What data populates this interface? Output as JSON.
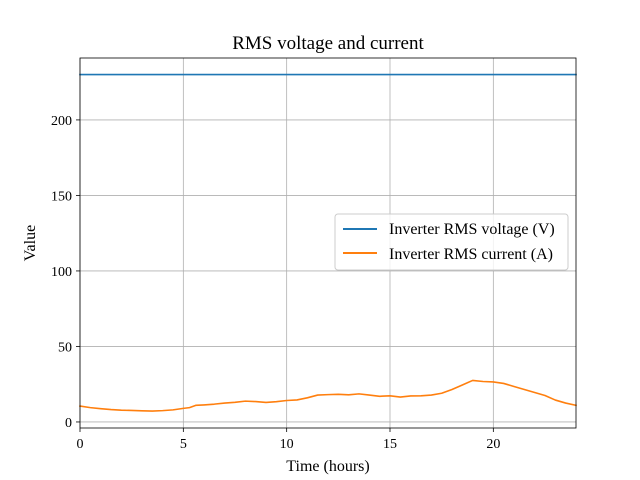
{
  "chart_data": {
    "type": "line",
    "title": "RMS voltage and current",
    "xlabel": "Time (hours)",
    "ylabel": "Value",
    "xlim": [
      0,
      24
    ],
    "ylim": [
      -4,
      241
    ],
    "xticks": [
      0,
      5,
      10,
      15,
      20
    ],
    "yticks": [
      0,
      50,
      100,
      150,
      200
    ],
    "grid": true,
    "legend_position": "center-right",
    "series": [
      {
        "name": "Inverter RMS voltage (V)",
        "color": "#1f77b4",
        "x": [
          0,
          24
        ],
        "y": [
          230,
          230
        ]
      },
      {
        "name": "Inverter RMS current (A)",
        "color": "#ff7f0e",
        "x": [
          0,
          0.5,
          1,
          1.5,
          2,
          2.5,
          3,
          3.5,
          4,
          4.5,
          5,
          5.3,
          5.6,
          6,
          6.5,
          7,
          7.5,
          8,
          8.5,
          9,
          9.5,
          10,
          10.5,
          11,
          11.5,
          12,
          12.5,
          13,
          13.5,
          14,
          14.5,
          15,
          15.5,
          16,
          16.5,
          17,
          17.5,
          18,
          18.5,
          19,
          19.5,
          20,
          20.5,
          21,
          21.5,
          22,
          22.5,
          23,
          23.5,
          24
        ],
        "y": [
          10.5,
          9.5,
          8.8,
          8.2,
          7.8,
          7.6,
          7.4,
          7.2,
          7.5,
          8.0,
          9.0,
          9.5,
          11.0,
          11.3,
          11.8,
          12.5,
          13.0,
          13.8,
          13.5,
          12.9,
          13.4,
          14.2,
          14.6,
          16.0,
          17.8,
          18.1,
          18.3,
          18.0,
          18.6,
          17.8,
          17.0,
          17.3,
          16.5,
          17.2,
          17.3,
          17.8,
          19.0,
          21.5,
          24.5,
          27.5,
          26.8,
          26.5,
          25.5,
          23.5,
          21.5,
          19.5,
          17.5,
          14.5,
          12.5,
          11.0
        ]
      }
    ]
  }
}
